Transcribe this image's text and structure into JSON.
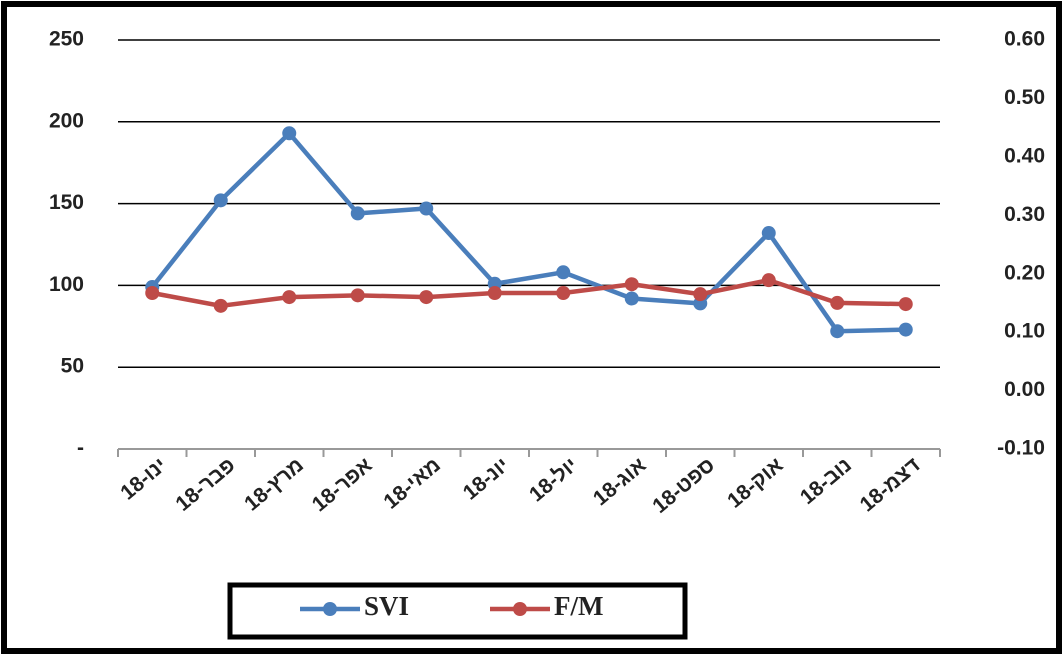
{
  "chart_data": {
    "type": "line",
    "categories": [
      "ינו-18",
      "פבר-18",
      "מרץ-18",
      "אפר-18",
      "מאי-18",
      "יונ-18",
      "יול-18",
      "אוג-18",
      "ספט-18",
      "אוק-18",
      "נוב-18",
      "דצמ-18"
    ],
    "series": [
      {
        "name": "SVI",
        "color": "#4a7ebb",
        "values": [
          99,
          152,
          193,
          144,
          147,
          101,
          108,
          92,
          89,
          132,
          72,
          73
        ]
      },
      {
        "name": "F/M",
        "color": "#be4b48",
        "axis": "y2",
        "values": [
          0.167,
          0.145,
          0.16,
          0.163,
          0.16,
          0.167,
          0.167,
          0.182,
          0.165,
          0.189,
          0.15,
          0.148
        ]
      }
    ],
    "ylim": [
      0,
      250
    ],
    "yticks": [
      {
        "value": 0,
        "label": "-"
      },
      50,
      100,
      150,
      200,
      250
    ],
    "y2lim": [
      -0.1,
      0.6
    ],
    "y2ticks": [
      {
        "value": -0.1,
        "label": "-0.10"
      },
      {
        "value": 0,
        "label": "0.00"
      },
      {
        "value": 0.1,
        "label": "0.10"
      },
      {
        "value": 0.2,
        "label": "0.20"
      },
      {
        "value": 0.3,
        "label": "0.30"
      },
      {
        "value": 0.4,
        "label": "0.40"
      },
      {
        "value": 0.5,
        "label": "0.50"
      },
      {
        "value": 0.6,
        "label": "0.60"
      }
    ],
    "grid": true,
    "legend": "bottom"
  }
}
